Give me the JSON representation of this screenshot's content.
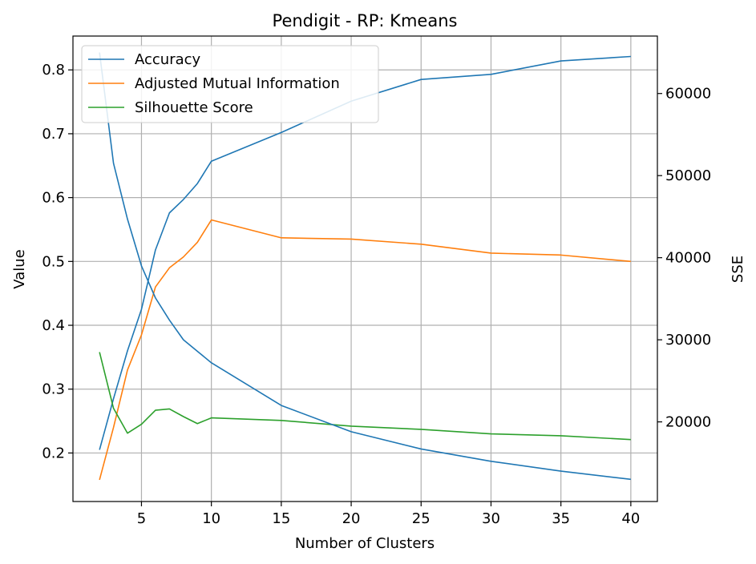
{
  "chart_data": {
    "type": "line",
    "title": "Pendigit - RP: Kmeans",
    "xlabel": "Number of Clusters",
    "ylabel": "Value",
    "y2label": "SSE",
    "xlim": [
      0.1,
      41.9
    ],
    "ylim": [
      0.124,
      0.853
    ],
    "y2lim": [
      10300,
      67000
    ],
    "xticks": [
      5,
      10,
      15,
      20,
      25,
      30,
      35,
      40
    ],
    "yticks": [
      0.2,
      0.3,
      0.4,
      0.5,
      0.6,
      0.7,
      0.8
    ],
    "y2ticks": [
      20000,
      30000,
      40000,
      50000,
      60000
    ],
    "ytick_labels": [
      "0.2",
      "0.3",
      "0.4",
      "0.5",
      "0.6",
      "0.7",
      "0.8"
    ],
    "y2tick_labels": [
      "20000",
      "30000",
      "40000",
      "50000",
      "60000"
    ],
    "grid": true,
    "legend_position": "upper-left",
    "x": [
      2,
      3,
      4,
      5,
      6,
      7,
      8,
      9,
      10,
      15,
      20,
      25,
      30,
      35,
      40
    ],
    "series": [
      {
        "name": "Accuracy",
        "axis": "left",
        "color": "#1f77b4",
        "values": [
          0.205,
          0.285,
          0.36,
          0.425,
          0.518,
          0.576,
          0.597,
          0.622,
          0.657,
          0.702,
          0.751,
          0.785,
          0.793,
          0.814,
          0.821
        ]
      },
      {
        "name": "Adjusted Mutual Information",
        "axis": "left",
        "color": "#ff7f0e",
        "values": [
          0.158,
          0.24,
          0.33,
          0.385,
          0.46,
          0.49,
          0.507,
          0.53,
          0.565,
          0.537,
          0.535,
          0.527,
          0.513,
          0.51,
          0.5
        ]
      },
      {
        "name": "Silhouette Score",
        "axis": "left",
        "color": "#2ca02c",
        "values": [
          0.358,
          0.27,
          0.231,
          0.245,
          0.267,
          0.269,
          0.257,
          0.246,
          0.255,
          0.251,
          0.242,
          0.237,
          0.23,
          0.227,
          0.221
        ]
      },
      {
        "name": "",
        "axis": "right",
        "color": "#1f77b4",
        "values": [
          65000,
          51500,
          44700,
          39000,
          35100,
          32400,
          30000,
          28600,
          27200,
          22000,
          18800,
          16700,
          15200,
          14000,
          13000
        ]
      }
    ]
  }
}
